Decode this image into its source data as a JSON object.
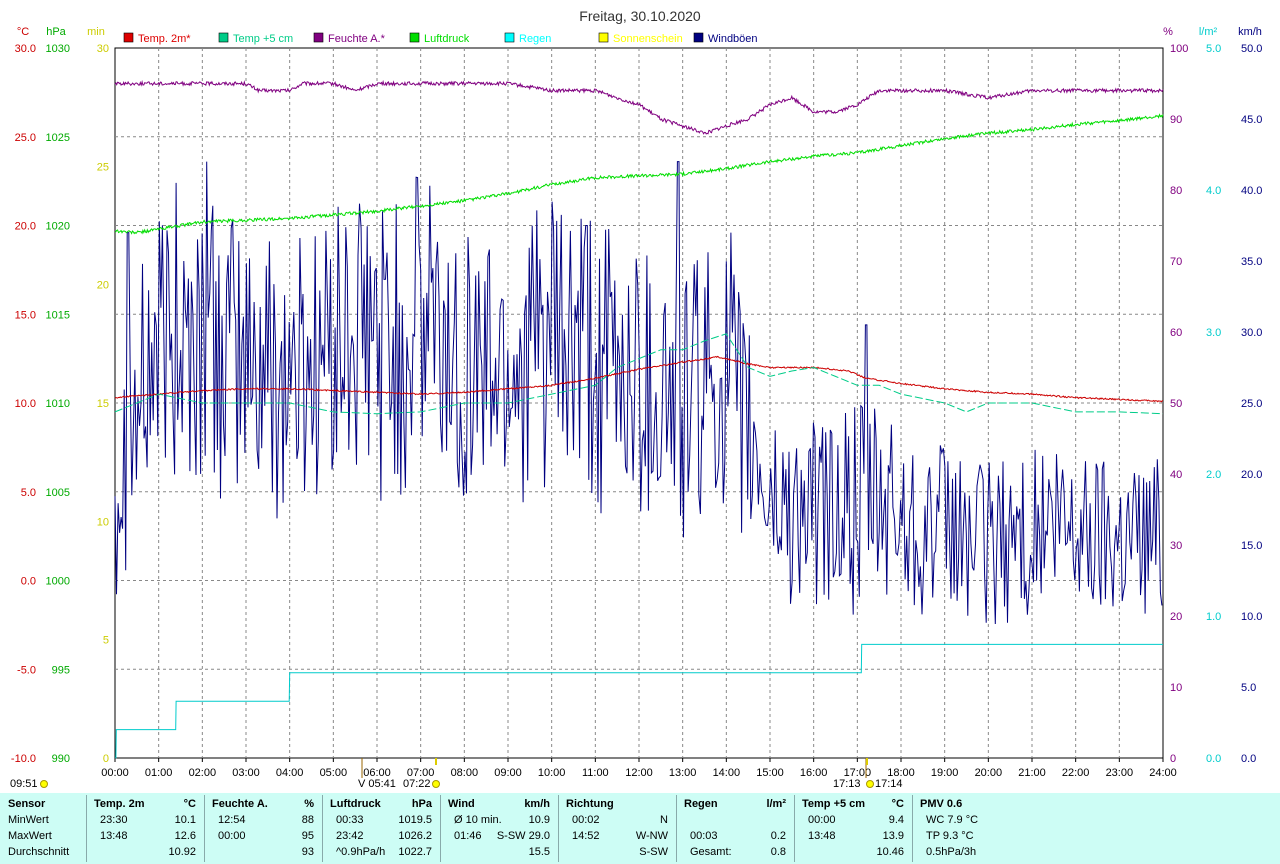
{
  "chart_data": {
    "type": "line",
    "title": "Freitag, 30.10.2020",
    "x_ticks": [
      "00:00",
      "01:00",
      "02:00",
      "03:00",
      "04:00",
      "05:00",
      "06:00",
      "07:00",
      "08:00",
      "09:00",
      "10:00",
      "11:00",
      "12:00",
      "13:00",
      "14:00",
      "15:00",
      "16:00",
      "17:00",
      "18:00",
      "19:00",
      "20:00",
      "21:00",
      "22:00",
      "23:00",
      "24:00"
    ],
    "axes": {
      "temp_c": {
        "unit": "°C",
        "range": [
          -10,
          30
        ],
        "ticks": [
          "30.0",
          "25.0",
          "20.0",
          "15.0",
          "10.0",
          "5.0",
          "0.0",
          "-5.0",
          "-10.0"
        ],
        "color": "#cc0000"
      },
      "pressure_hpa": {
        "unit": "hPa",
        "range": [
          990,
          1030
        ],
        "ticks": [
          "1030",
          "1025",
          "1020",
          "1015",
          "1010",
          "1005",
          "1000",
          "995",
          "990"
        ],
        "color": "#00aa00"
      },
      "sunshine_min": {
        "unit": "min",
        "range": [
          0,
          30
        ],
        "ticks": [
          "30",
          "25",
          "20",
          "15",
          "10",
          "5",
          "0"
        ],
        "color": "#cccc00"
      },
      "humidity_pct": {
        "unit": "%",
        "range": [
          0,
          100
        ],
        "ticks": [
          "100",
          "90",
          "80",
          "70",
          "60",
          "50",
          "40",
          "30",
          "20",
          "10",
          "0"
        ],
        "color": "#800080"
      },
      "rain_lm2": {
        "unit": "l/m²",
        "range": [
          0,
          5
        ],
        "ticks": [
          "5.0",
          "4.0",
          "3.0",
          "2.0",
          "1.0",
          "0.0"
        ],
        "color": "#00cccc"
      },
      "wind_kmh": {
        "unit": "km/h",
        "range": [
          0,
          50
        ],
        "ticks": [
          "50.0",
          "45.0",
          "40.0",
          "35.0",
          "30.0",
          "25.0",
          "20.0",
          "15.0",
          "10.0",
          "5.0",
          "0.0"
        ],
        "color": "#000080"
      }
    },
    "legend": [
      {
        "name": "Temp. 2m*",
        "color": "#dd0000"
      },
      {
        "name": "Temp +5 cm",
        "color": "#00cc88"
      },
      {
        "name": "Feuchte A.*",
        "color": "#800080"
      },
      {
        "name": "Luftdruck",
        "color": "#00dd00"
      },
      {
        "name": "Regen",
        "color": "#00ffff"
      },
      {
        "name": "Sonnenschein",
        "color": "#ffff00"
      },
      {
        "name": "Windböen",
        "color": "#000080"
      }
    ],
    "series": [
      {
        "name": "Temp. 2m*",
        "axis": "temp_c",
        "color": "#cc0000",
        "x": [
          0,
          1,
          2,
          3,
          4,
          5,
          6,
          7,
          8,
          9,
          10,
          11,
          12,
          13,
          13.8,
          14.5,
          15,
          16,
          16.8,
          17.2,
          18,
          19,
          20,
          21,
          22,
          23,
          24
        ],
        "y": [
          10.3,
          10.5,
          10.7,
          10.8,
          10.8,
          10.7,
          10.6,
          10.5,
          10.6,
          10.8,
          11.0,
          11.4,
          11.9,
          12.3,
          12.6,
          12.2,
          12.0,
          12.0,
          11.8,
          11.4,
          11.1,
          10.8,
          10.6,
          10.5,
          10.3,
          10.2,
          10.1
        ]
      },
      {
        "name": "Temp +5 cm",
        "axis": "temp_c",
        "color": "#00cc88",
        "x": [
          0,
          0.5,
          1,
          2,
          3,
          4,
          5,
          6,
          7,
          8,
          9,
          10,
          11,
          11.5,
          12,
          12.5,
          13,
          13.5,
          14,
          14.5,
          15,
          15.5,
          16,
          16.5,
          17,
          17.5,
          18,
          19,
          19.5,
          20,
          21,
          22,
          23,
          24
        ],
        "y": [
          9.5,
          10.0,
          10.5,
          10.0,
          10.0,
          10.0,
          9.5,
          9.4,
          9.5,
          10.0,
          10.0,
          10.5,
          11.0,
          12.0,
          12.5,
          13.0,
          13.0,
          13.5,
          13.9,
          12.0,
          11.5,
          11.8,
          12.0,
          11.5,
          11.0,
          11.0,
          10.5,
          10.0,
          9.5,
          10.0,
          10.0,
          9.5,
          9.5,
          9.4
        ]
      },
      {
        "name": "Feuchte A.*",
        "axis": "humidity_pct",
        "color": "#800080",
        "x": [
          0,
          1,
          2,
          3,
          3.3,
          4,
          4.3,
          5,
          5.5,
          6,
          7,
          8,
          9,
          10,
          10.5,
          11,
          11.5,
          12,
          12.5,
          13,
          13.5,
          14,
          14.5,
          15,
          15.5,
          16,
          16.5,
          17,
          17.5,
          18,
          19,
          20,
          21,
          22,
          23,
          24
        ],
        "y": [
          95,
          95,
          95,
          95,
          94,
          94,
          95,
          95,
          94,
          95,
          95,
          95,
          95,
          94,
          94,
          94,
          93,
          92,
          90,
          89,
          88,
          89,
          90,
          92,
          93,
          91,
          91,
          92,
          94,
          94,
          94,
          93,
          94,
          94,
          94,
          94
        ]
      },
      {
        "name": "Luftdruck",
        "axis": "pressure_hpa",
        "color": "#00dd00",
        "x": [
          0,
          0.5,
          1,
          2,
          3,
          4,
          5,
          6,
          7,
          8,
          9,
          10,
          11,
          12,
          13,
          14,
          15,
          16,
          17,
          18,
          19,
          20,
          21,
          22,
          23,
          24
        ],
        "y": [
          1019.7,
          1019.6,
          1019.8,
          1020.2,
          1020.3,
          1020.4,
          1020.6,
          1020.8,
          1021.1,
          1021.4,
          1021.8,
          1022.3,
          1022.7,
          1022.8,
          1022.9,
          1023.2,
          1023.6,
          1023.9,
          1024.1,
          1024.5,
          1024.9,
          1025.2,
          1025.4,
          1025.7,
          1025.9,
          1026.2
        ]
      },
      {
        "name": "Regen",
        "axis": "rain_lm2",
        "color": "#00cccc",
        "x": [
          0,
          0.02,
          0.03,
          1.39,
          1.4,
          3.99,
          4.0,
          4.01,
          17.09,
          17.1,
          17.11,
          24
        ],
        "y": [
          0,
          0,
          0.2,
          0.2,
          0.4,
          0.4,
          0.6,
          0.6,
          0.6,
          0.8,
          0.8,
          0.8
        ]
      },
      {
        "name": "Windböen",
        "axis": "wind_kmh",
        "color": "#000080",
        "source": "wind"
      }
    ],
    "wind_profile": {
      "x": [
        0,
        1,
        2,
        3,
        4,
        5,
        6,
        7,
        8,
        9,
        10,
        11,
        12,
        13,
        14,
        15,
        16,
        17,
        18,
        19,
        20,
        21,
        22,
        23,
        24
      ],
      "base": [
        20,
        29,
        29,
        28,
        27,
        29,
        29,
        29,
        28,
        28,
        29,
        27,
        27,
        25,
        27,
        18,
        17,
        18,
        17,
        16,
        15,
        16,
        16,
        16,
        16
      ],
      "amp": [
        9,
        10,
        11,
        10,
        11,
        10,
        11,
        12,
        10,
        10,
        11,
        11,
        10,
        11,
        9,
        7,
        7,
        7,
        7,
        6,
        6,
        6,
        6,
        6,
        6
      ],
      "peaks": [
        {
          "x": 1.4,
          "y": 40.5
        },
        {
          "x": 2.1,
          "y": 42.0
        },
        {
          "x": 6.9,
          "y": 40.9
        },
        {
          "x": 7.2,
          "y": 40.3
        },
        {
          "x": 10.8,
          "y": 37.5
        },
        {
          "x": 12.9,
          "y": 42.0
        },
        {
          "x": 14.1,
          "y": 37.0
        },
        {
          "x": 17.2,
          "y": 30.5
        },
        {
          "x": 0.3,
          "y": 37.0
        },
        {
          "x": 16.9,
          "y": 10.1
        }
      ],
      "min": 3.0,
      "max": 42.0
    },
    "sun_markers": {
      "sunrise": "07:22",
      "sunset": "17:14",
      "other": [
        "06:00",
        "17:00"
      ],
      "events": [
        "V 05:41",
        "17:13"
      ]
    },
    "bottom_left_time": "09:51"
  },
  "stats": {
    "row_labels": [
      "Sensor",
      "MinWert",
      "MaxWert",
      "Durchschnitt"
    ],
    "columns": [
      {
        "label": "Temp. 2m",
        "unit": "°C",
        "min_time": "23:30",
        "min": "10.1",
        "max_time": "13:48",
        "max": "12.6",
        "avg_time": "",
        "avg": "10.92"
      },
      {
        "label": "Feuchte A.",
        "unit": "%",
        "min_time": "12:54",
        "min": "88",
        "max_time": "00:00",
        "max": "95",
        "avg_time": "",
        "avg": "93"
      },
      {
        "label": "Luftdruck",
        "unit": "hPa",
        "min_time": "00:33",
        "min": "1019.5",
        "max_time": "23:42",
        "max": "1026.2",
        "avg_time": "^0.9hPa/h",
        "avg": "1022.7"
      },
      {
        "label": "Wind",
        "unit": "km/h",
        "min_time": "Ø 10 min.",
        "min": "10.9",
        "max_time": "01:46",
        "max": "S-SW 29.0",
        "avg_time": "",
        "avg": "15.5"
      },
      {
        "label": "Richtung",
        "unit": "",
        "min_time": "00:02",
        "min": "N",
        "max_time": "14:52",
        "max": "W-NW",
        "avg_time": "",
        "avg": "S-SW"
      },
      {
        "label": "Regen",
        "unit": "l/m²",
        "min_time": "",
        "min": "",
        "max_time": "00:03",
        "max": "0.2",
        "avg_time": "Gesamt:",
        "avg": "0.8"
      },
      {
        "label": "Temp +5 cm",
        "unit": "°C",
        "min_time": "00:00",
        "min": "9.4",
        "max_time": "13:48",
        "max": "13.9",
        "avg_time": "",
        "avg": "10.46"
      },
      {
        "label": "PMV 0.6",
        "unit": "",
        "min_time": "WC 7.9 °C",
        "min": "",
        "max_time": "TP 9.3 °C",
        "max": "",
        "avg_time": "0.5hPa/3h",
        "avg": ""
      }
    ]
  }
}
